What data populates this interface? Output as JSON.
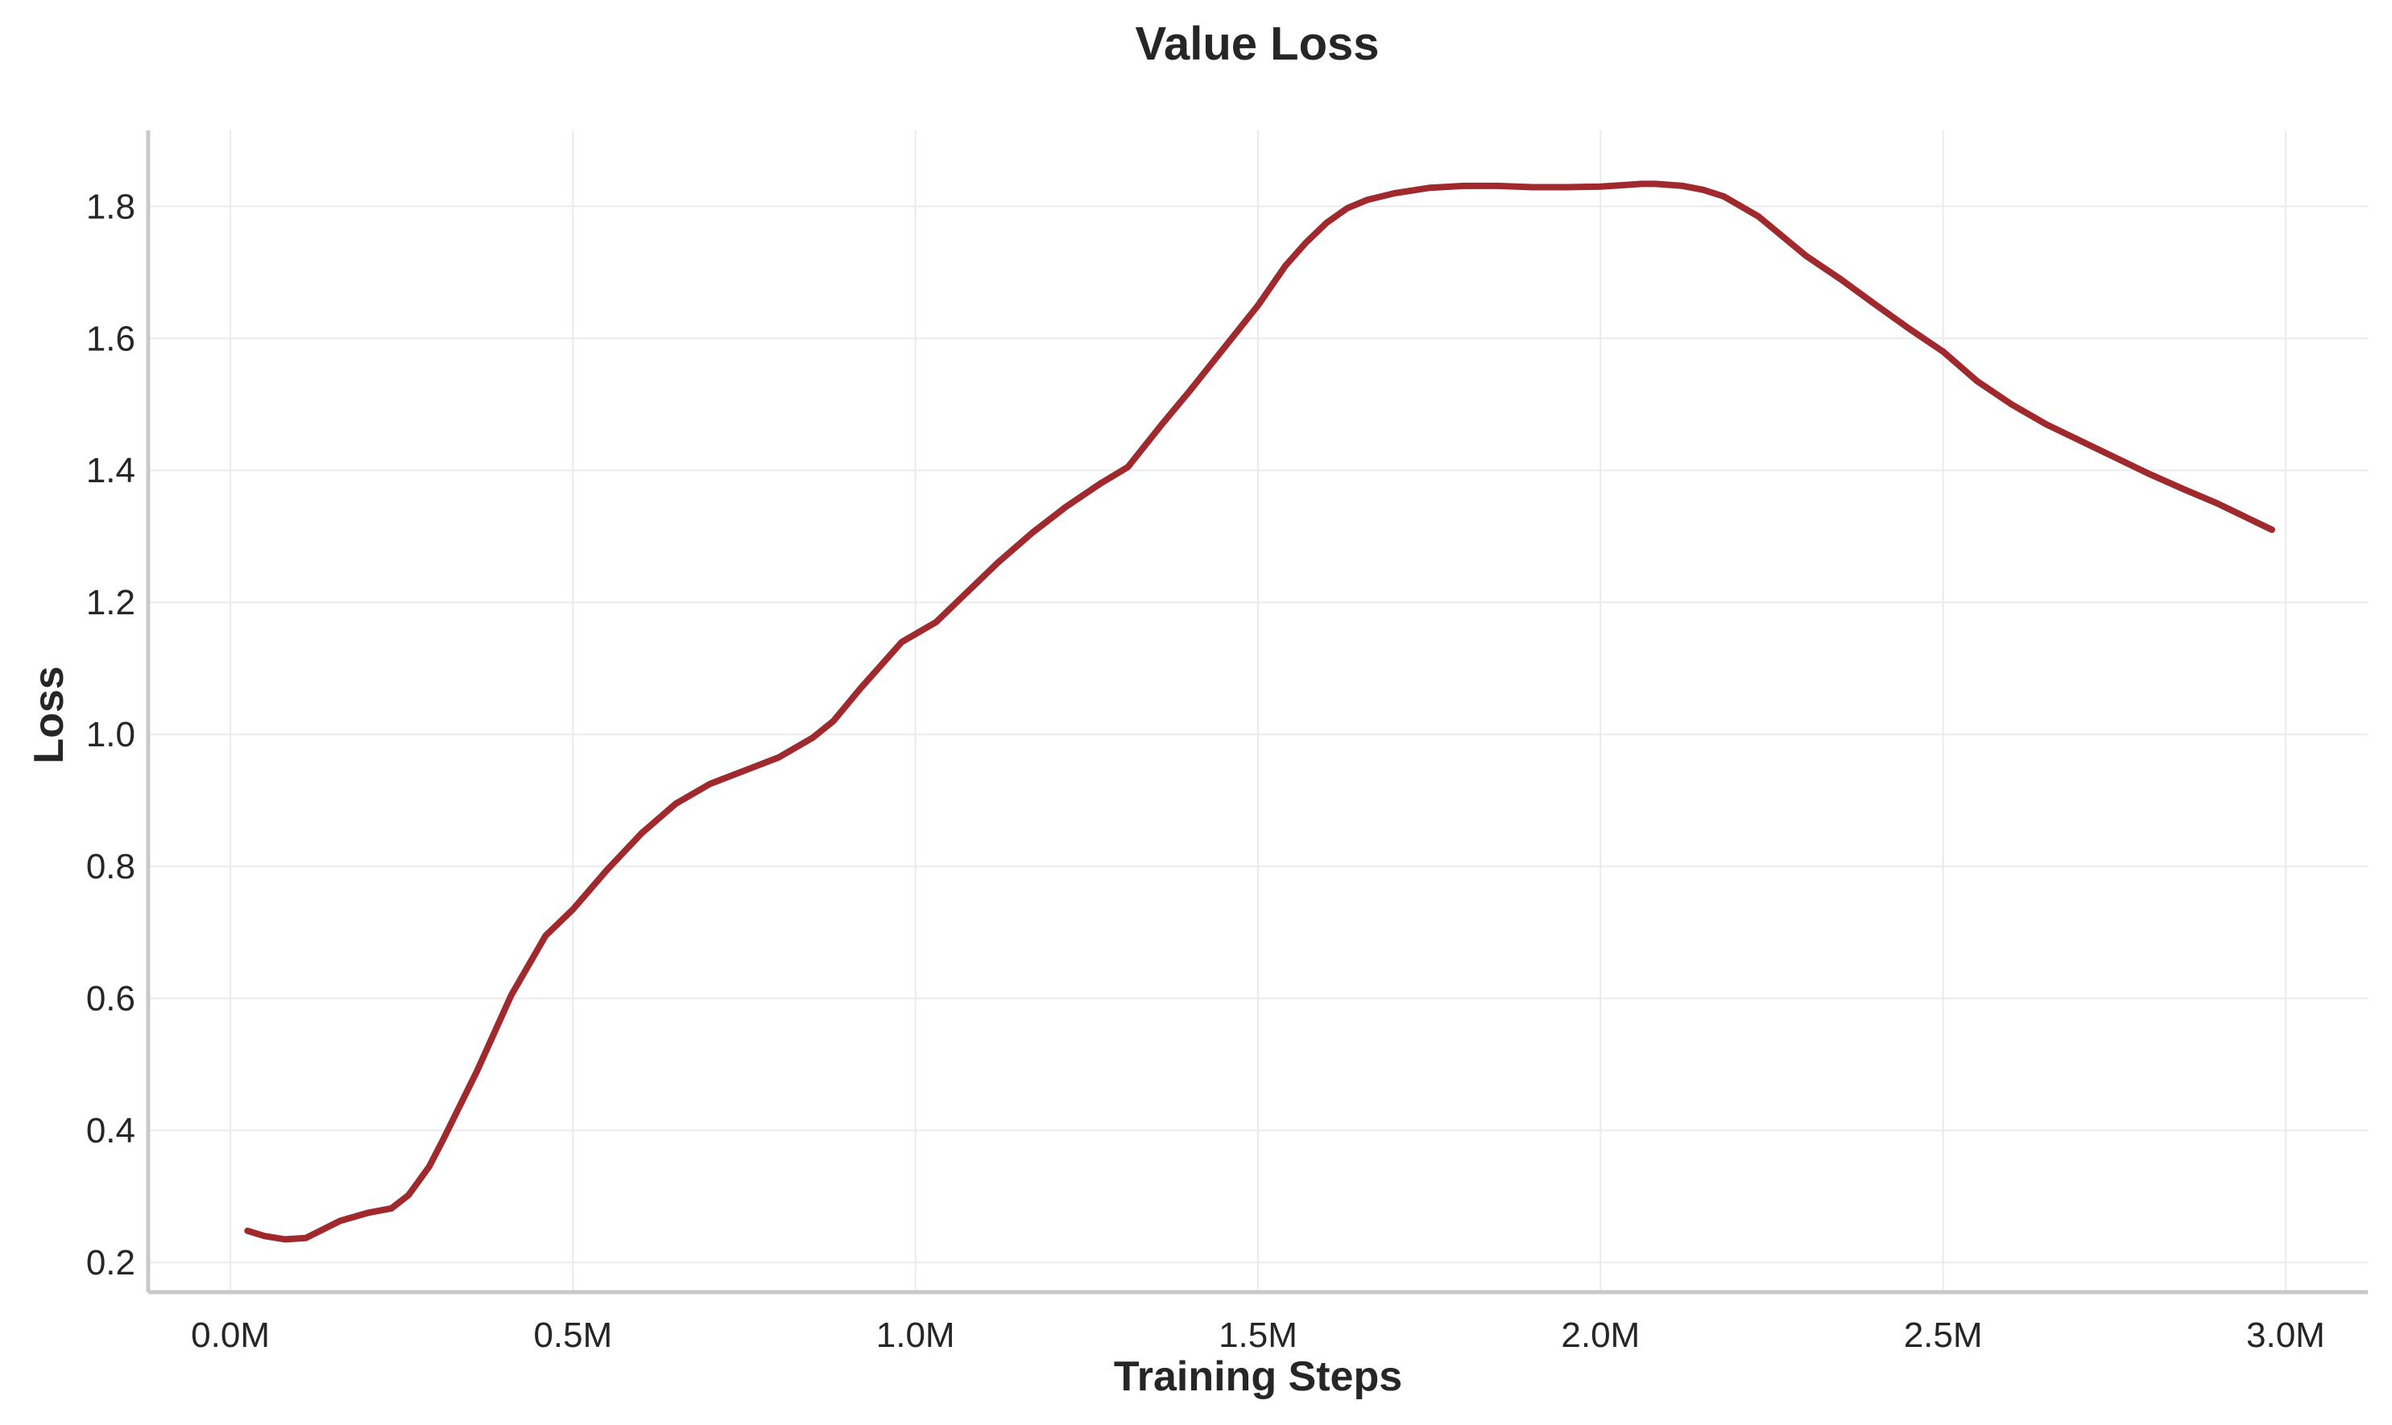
{
  "chart_data": {
    "type": "line",
    "title": "Value Loss",
    "xlabel": "Training Steps",
    "ylabel": "Loss",
    "xlim": [
      -0.12,
      3.12
    ],
    "ylim": [
      0.155,
      1.915
    ],
    "xticks": [
      0,
      0.5,
      1.0,
      1.5,
      2.0,
      2.5,
      3.0
    ],
    "xtick_labels": [
      "0.0M",
      "0.5M",
      "1.0M",
      "1.5M",
      "2.0M",
      "2.5M",
      "3.0M"
    ],
    "yticks": [
      0.2,
      0.4,
      0.6,
      0.8,
      1.0,
      1.2,
      1.4,
      1.6,
      1.8
    ],
    "ytick_labels": [
      "0.2",
      "0.4",
      "0.6",
      "0.8",
      "1.0",
      "1.2",
      "1.4",
      "1.6",
      "1.8"
    ],
    "grid": true,
    "series": [
      {
        "color": "#a0292d",
        "x": [
          0.025,
          0.05,
          0.08,
          0.11,
          0.16,
          0.2,
          0.235,
          0.26,
          0.29,
          0.31,
          0.36,
          0.41,
          0.46,
          0.5,
          0.55,
          0.6,
          0.65,
          0.7,
          0.75,
          0.8,
          0.85,
          0.88,
          0.92,
          0.98,
          1.03,
          1.07,
          1.12,
          1.17,
          1.22,
          1.27,
          1.31,
          1.36,
          1.4,
          1.45,
          1.5,
          1.54,
          1.57,
          1.6,
          1.63,
          1.66,
          1.7,
          1.75,
          1.8,
          1.85,
          1.9,
          1.95,
          2.0,
          2.03,
          2.06,
          2.08,
          2.12,
          2.15,
          2.18,
          2.23,
          2.3,
          2.35,
          2.4,
          2.45,
          2.5,
          2.55,
          2.6,
          2.65,
          2.7,
          2.75,
          2.8,
          2.85,
          2.9,
          2.95,
          2.98
        ],
        "y": [
          0.248,
          0.24,
          0.235,
          0.237,
          0.263,
          0.275,
          0.282,
          0.302,
          0.345,
          0.385,
          0.49,
          0.605,
          0.695,
          0.735,
          0.795,
          0.85,
          0.895,
          0.925,
          0.945,
          0.965,
          0.995,
          1.02,
          1.07,
          1.14,
          1.17,
          1.21,
          1.26,
          1.305,
          1.345,
          1.38,
          1.405,
          1.47,
          1.52,
          1.585,
          1.65,
          1.71,
          1.745,
          1.775,
          1.797,
          1.81,
          1.82,
          1.828,
          1.831,
          1.831,
          1.829,
          1.829,
          1.83,
          1.832,
          1.834,
          1.834,
          1.831,
          1.825,
          1.815,
          1.785,
          1.725,
          1.69,
          1.652,
          1.615,
          1.58,
          1.535,
          1.5,
          1.47,
          1.445,
          1.42,
          1.395,
          1.372,
          1.35,
          1.325,
          1.31
        ]
      }
    ]
  }
}
